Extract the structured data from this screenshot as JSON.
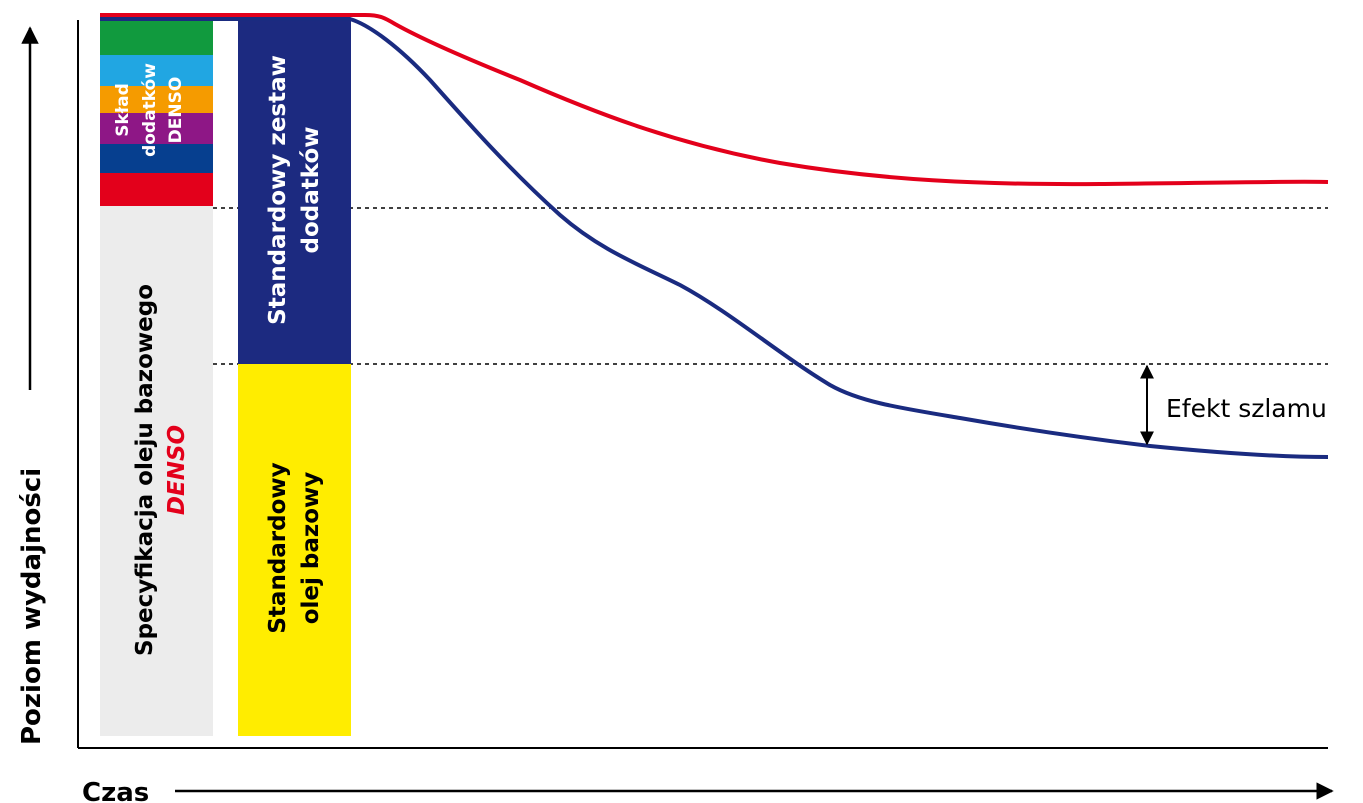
{
  "chart_data": {
    "type": "line",
    "xlabel": "Czas",
    "ylabel": "Poziom wydajności",
    "grid": false,
    "reference_levels": [
      {
        "name": "base_plus_denso_additives",
        "y": 0.725
      },
      {
        "name": "standard_base_plus_additives",
        "y": 0.515
      }
    ],
    "series": [
      {
        "color": "#e3001b",
        "points": [
          [
            0.0,
            0.98
          ],
          [
            0.2,
            0.98
          ],
          [
            0.25,
            0.93
          ],
          [
            0.35,
            0.84
          ],
          [
            0.5,
            0.78
          ],
          [
            0.7,
            0.752
          ],
          [
            0.85,
            0.751
          ],
          [
            1.0,
            0.755
          ]
        ]
      },
      {
        "color": "#1a2b80",
        "points": [
          [
            0.0,
            0.98
          ],
          [
            0.2,
            0.98
          ],
          [
            0.24,
            0.92
          ],
          [
            0.3,
            0.8
          ],
          [
            0.35,
            0.73
          ],
          [
            0.42,
            0.655
          ],
          [
            0.48,
            0.6
          ],
          [
            0.55,
            0.51
          ],
          [
            0.62,
            0.45
          ],
          [
            0.75,
            0.42
          ],
          [
            0.88,
            0.396
          ],
          [
            1.0,
            0.39
          ]
        ]
      }
    ],
    "bars": {
      "denso": {
        "base_label_line1": "Specyfikacja oleju bazowego",
        "base_label_line2": "DENSO",
        "additive_label": [
          "Skład",
          "dodatków",
          "DENSO"
        ],
        "additive_colors": [
          "#e3001b",
          "#063f8f",
          "#8e1786",
          "#f59b00",
          "#21a6e2",
          "#119a3e"
        ],
        "base_color": "#ececec"
      },
      "standard": {
        "base_label": [
          "Standardowy",
          "olej bazowy"
        ],
        "additive_label": [
          "Standardowy zestaw",
          "dodatków"
        ],
        "base_color": "#ffed00",
        "additive_color": "#1c2a80"
      }
    },
    "annotation": "Efekt szlamu"
  }
}
